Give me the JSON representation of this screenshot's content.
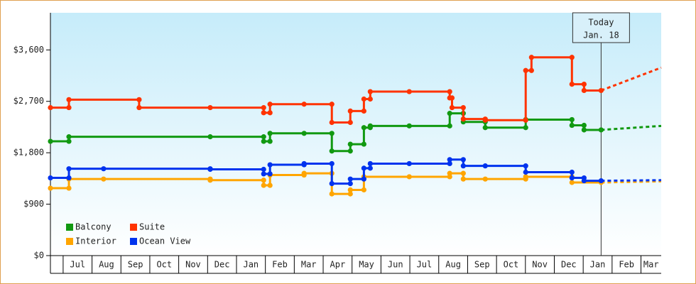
{
  "chart_data": {
    "type": "step",
    "xlim": [
      0.56,
      21.7
    ],
    "xticks": [
      {
        "value": 1,
        "label": "Jul"
      },
      {
        "value": 2,
        "label": "Aug"
      },
      {
        "value": 3,
        "label": "Sep"
      },
      {
        "value": 4,
        "label": "Oct"
      },
      {
        "value": 5,
        "label": "Nov"
      },
      {
        "value": 6,
        "label": "Dec"
      },
      {
        "value": 7,
        "label": "Jan"
      },
      {
        "value": 8,
        "label": "Feb"
      },
      {
        "value": 9,
        "label": "Mar"
      },
      {
        "value": 10,
        "label": "Apr"
      },
      {
        "value": 11,
        "label": "May"
      },
      {
        "value": 12,
        "label": "Jun"
      },
      {
        "value": 13,
        "label": "Jul"
      },
      {
        "value": 14,
        "label": "Aug"
      },
      {
        "value": 15,
        "label": "Sep"
      },
      {
        "value": 16,
        "label": "Oct"
      },
      {
        "value": 17,
        "label": "Nov"
      },
      {
        "value": 18,
        "label": "Dec"
      },
      {
        "value": 19,
        "label": "Jan"
      },
      {
        "value": 20,
        "label": "Feb"
      },
      {
        "value": 21,
        "label": "Mar"
      }
    ],
    "ylim": [
      0,
      4250
    ],
    "yticks": [
      {
        "value": 0,
        "label": "$0"
      },
      {
        "value": 900,
        "label": "$900"
      },
      {
        "value": 1800,
        "label": "$1,800"
      },
      {
        "value": 2700,
        "label": "$2,700"
      },
      {
        "value": 3600,
        "label": "$3,600"
      }
    ],
    "grid": false,
    "legend": "lower left",
    "annotation": {
      "text": [
        "Today",
        "Jan. 18"
      ],
      "x": 19.62
    },
    "series": [
      {
        "name": "Balcony",
        "color": "#119911",
        "x": [
          0.56,
          1.2,
          6.09,
          7.94,
          8.16,
          9.34,
          10.3,
          10.94,
          11.41,
          11.63,
          12.98,
          14.38,
          14.85,
          15.61,
          17.01,
          18.61,
          19.03,
          19.62
        ],
        "values": [
          2000,
          2080,
          2080,
          2000,
          2140,
          2140,
          1830,
          1950,
          2240,
          2270,
          2270,
          2490,
          2340,
          2240,
          2380,
          2280,
          2200,
          2200
        ],
        "forecast": {
          "x": 21.7,
          "value": 2270
        }
      },
      {
        "name": "Suite",
        "color": "#ff3300",
        "x": [
          0.56,
          1.2,
          3.63,
          6.09,
          7.94,
          8.16,
          9.34,
          10.3,
          10.94,
          11.41,
          11.63,
          12.98,
          14.38,
          14.46,
          14.85,
          15.61,
          17.01,
          17.21,
          18.61,
          19.03,
          19.62
        ],
        "values": [
          2590,
          2730,
          2590,
          2590,
          2500,
          2650,
          2650,
          2330,
          2530,
          2740,
          2870,
          2870,
          2760,
          2590,
          2390,
          2370,
          3240,
          3470,
          3000,
          2890,
          2890
        ],
        "forecast": {
          "x": 21.7,
          "value": 3290
        }
      },
      {
        "name": "Interior",
        "color": "#ffa500",
        "x": [
          0.56,
          1.2,
          2.4,
          6.09,
          7.94,
          8.16,
          9.34,
          10.3,
          10.94,
          11.41,
          12.98,
          14.38,
          14.85,
          15.61,
          17.01,
          18.61,
          19.62
        ],
        "values": [
          1180,
          1340,
          1340,
          1320,
          1230,
          1410,
          1440,
          1080,
          1150,
          1380,
          1380,
          1440,
          1340,
          1340,
          1380,
          1280,
          1280
        ],
        "forecast": {
          "x": 21.7,
          "value": 1300
        }
      },
      {
        "name": "Ocean View",
        "color": "#0033ee",
        "x": [
          0.56,
          1.2,
          2.4,
          6.09,
          7.94,
          8.16,
          9.34,
          10.3,
          10.94,
          11.41,
          11.63,
          12.98,
          14.38,
          14.85,
          15.61,
          17.01,
          18.61,
          19.03,
          19.62
        ],
        "values": [
          1360,
          1520,
          1520,
          1510,
          1430,
          1590,
          1610,
          1260,
          1340,
          1530,
          1610,
          1610,
          1680,
          1570,
          1570,
          1460,
          1360,
          1310,
          1310
        ],
        "forecast": {
          "x": 21.7,
          "value": 1320
        }
      }
    ]
  }
}
